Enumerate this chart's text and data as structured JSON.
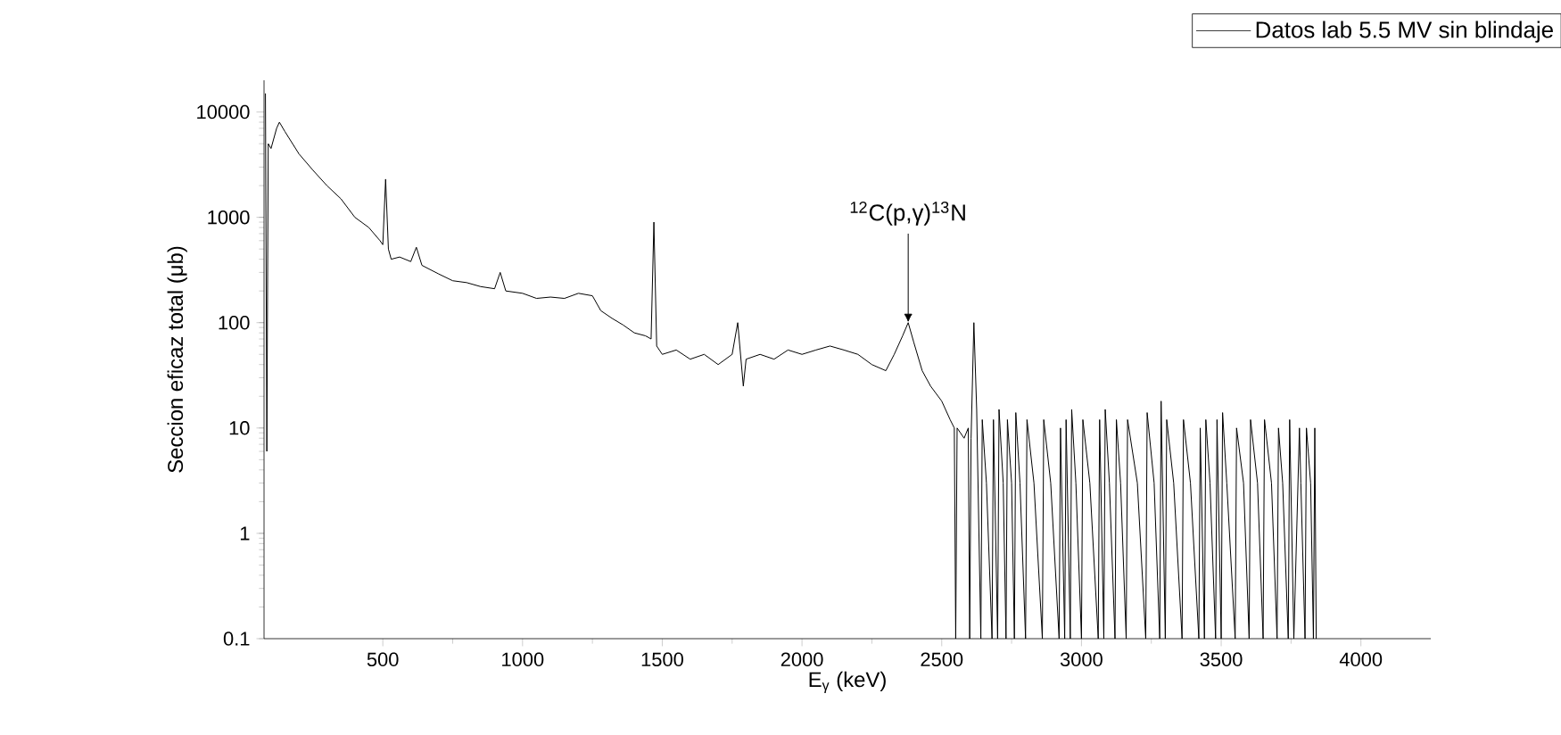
{
  "chart_data": {
    "type": "line",
    "xlabel": "E$_{γ}$ (keV)",
    "ylabel": "Seccion eficaz total (μb)",
    "log": "y",
    "xlim": [
      75,
      4250
    ],
    "ylim": [
      0.1,
      20000
    ],
    "xticks": [
      500,
      1000,
      1500,
      2000,
      2500,
      3000,
      3500,
      4000
    ],
    "yticks": [
      {
        "value": 0.1,
        "label": "0.1"
      },
      {
        "value": 1,
        "label": "1"
      },
      {
        "value": 10,
        "label": "10"
      },
      {
        "value": 100,
        "label": "100"
      },
      {
        "value": 1000,
        "label": "1000"
      },
      {
        "value": 10000,
        "label": "10000"
      }
    ],
    "legend": "top right",
    "marker": "none",
    "line_style": "solid",
    "annotations": [
      {
        "text": "$^{12}$C(p,γ)$^{13}$N",
        "x": 2380,
        "y": 100
      }
    ],
    "series": [
      {
        "name": "Datos lab 5.5 MV sin blindaje",
        "color": "#000000",
        "x": [
          80,
          85,
          90,
          100,
          120,
          130,
          150,
          200,
          250,
          300,
          350,
          400,
          450,
          490,
          500,
          510,
          520,
          530,
          560,
          600,
          620,
          640,
          700,
          750,
          800,
          850,
          900,
          920,
          940,
          1000,
          1050,
          1100,
          1150,
          1200,
          1250,
          1280,
          1320,
          1360,
          1400,
          1440,
          1460,
          1470,
          1480,
          1500,
          1550,
          1600,
          1650,
          1700,
          1750,
          1770,
          1790,
          1800,
          1850,
          1900,
          1950,
          2000,
          2050,
          2100,
          2150,
          2200,
          2250,
          2300,
          2330,
          2360,
          2380,
          2400,
          2430,
          2460,
          2500,
          2530,
          2545,
          2550,
          2555,
          2580,
          2595,
          2600,
          2605,
          2615,
          2625,
          2640,
          2645,
          2660,
          2680,
          2685,
          2700,
          2705,
          2720,
          2730,
          2735,
          2750,
          2760,
          2765,
          2780,
          2800,
          2805,
          2830,
          2860,
          2865,
          2890,
          2920,
          2925,
          2940,
          2945,
          2960,
          2965,
          2980,
          3000,
          3005,
          3030,
          3060,
          3065,
          3080,
          3085,
          3100,
          3120,
          3125,
          3140,
          3160,
          3165,
          3200,
          3230,
          3235,
          3260,
          3280,
          3285,
          3300,
          3305,
          3330,
          3360,
          3365,
          3390,
          3420,
          3425,
          3440,
          3445,
          3460,
          3480,
          3485,
          3500,
          3505,
          3520,
          3550,
          3555,
          3580,
          3600,
          3605,
          3630,
          3650,
          3655,
          3680,
          3700,
          3705,
          3720,
          3740,
          3745,
          3760,
          3780,
          3785,
          3800,
          3805,
          3820,
          3830,
          3835,
          3840
        ],
        "values": [
          15000,
          6,
          5000,
          4500,
          7000,
          8000,
          6500,
          4000,
          2800,
          2000,
          1500,
          1000,
          800,
          600,
          550,
          2300,
          500,
          400,
          420,
          380,
          520,
          350,
          290,
          250,
          240,
          220,
          210,
          300,
          200,
          190,
          170,
          175,
          170,
          190,
          180,
          130,
          110,
          95,
          80,
          75,
          70,
          900,
          60,
          50,
          55,
          45,
          50,
          40,
          50,
          100,
          25,
          45,
          50,
          45,
          55,
          50,
          55,
          60,
          55,
          50,
          40,
          35,
          50,
          75,
          100,
          65,
          35,
          25,
          18,
          12,
          10,
          0.1,
          10,
          8,
          10,
          0.1,
          8,
          100,
          15,
          0.1,
          12,
          3,
          0.1,
          12,
          0.1,
          15,
          3,
          0.1,
          12,
          3,
          0.1,
          14,
          3,
          0.1,
          12,
          3,
          0.1,
          12,
          3,
          0.1,
          10,
          0.1,
          12,
          0.1,
          15,
          3,
          0.1,
          12,
          3,
          0.1,
          12,
          0.1,
          15,
          3,
          0.1,
          12,
          3,
          0.1,
          12,
          3,
          0.1,
          14,
          3,
          0.1,
          18,
          0.1,
          12,
          3,
          0.1,
          12,
          3,
          0.1,
          10,
          0.1,
          12,
          3,
          0.1,
          12,
          0.1,
          14,
          3,
          0.1,
          10,
          3,
          0.1,
          12,
          3,
          0.1,
          12,
          3,
          0.1,
          10,
          3,
          0.1,
          12,
          0.1,
          10,
          3,
          0.1,
          10,
          3,
          0.1,
          10,
          0.1
        ]
      }
    ]
  }
}
